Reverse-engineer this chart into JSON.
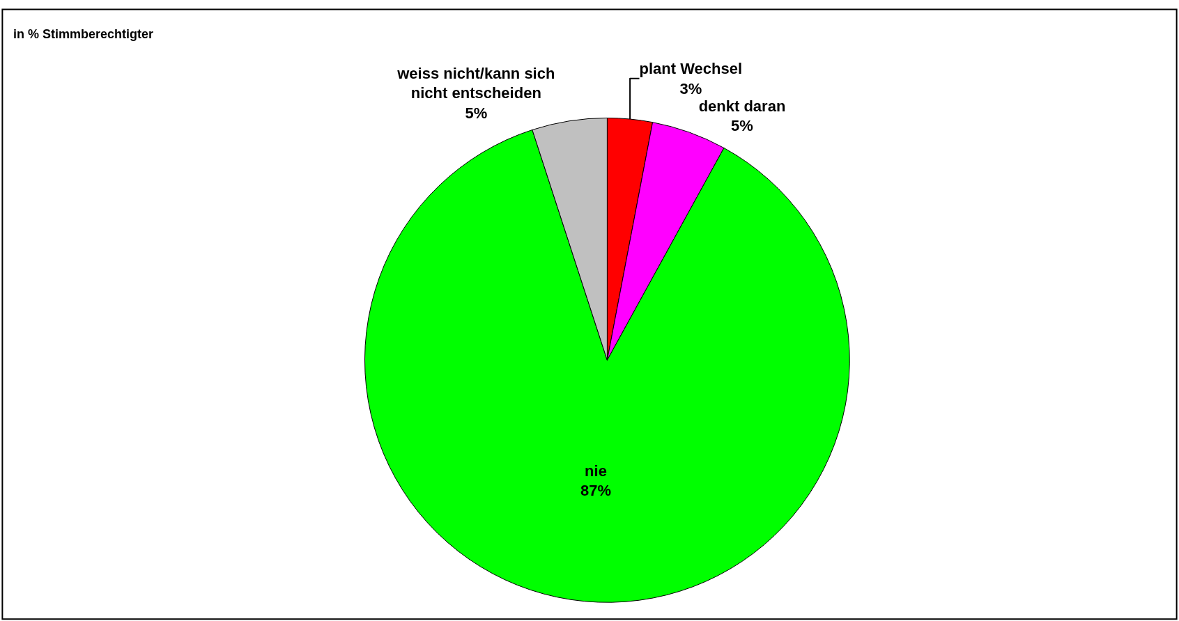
{
  "chart_data": {
    "type": "pie",
    "subtitle": "in % Stimmberechtigter",
    "categories": [
      "plant Wechsel",
      "denkt daran",
      "nie",
      "weiss nicht/kann sich nicht entscheiden"
    ],
    "values": [
      3,
      5,
      87,
      5
    ],
    "value_labels": [
      "3%",
      "5%",
      "87%",
      "5%"
    ],
    "colors": [
      "#ff0000",
      "#ff00ff",
      "#00ff00",
      "#c0c0c0"
    ],
    "legend": false
  }
}
